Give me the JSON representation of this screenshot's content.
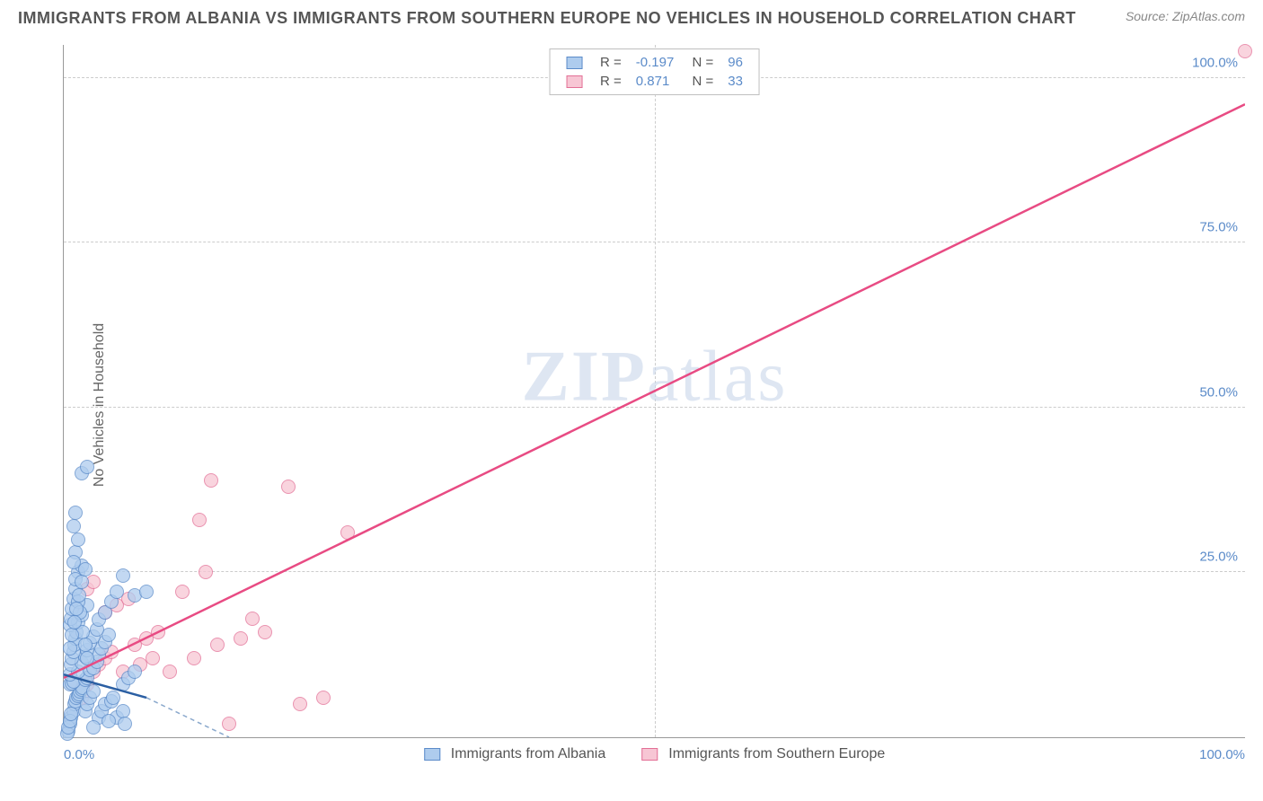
{
  "title": "IMMIGRANTS FROM ALBANIA VS IMMIGRANTS FROM SOUTHERN EUROPE NO VEHICLES IN HOUSEHOLD CORRELATION CHART",
  "source_label": "Source: ZipAtlas.com",
  "watermark": "ZIPatlas",
  "ylabel": "No Vehicles in Household",
  "chart": {
    "type": "scatter",
    "xlim": [
      0,
      100
    ],
    "ylim": [
      0,
      105
    ],
    "x_ticks": [
      0,
      50,
      100
    ],
    "x_tick_labels": [
      "0.0%",
      "",
      "100.0%"
    ],
    "y_ticks": [
      25,
      50,
      75,
      100
    ],
    "y_tick_labels": [
      "25.0%",
      "50.0%",
      "75.0%",
      "100.0%"
    ],
    "grid_color": "#cccccc",
    "background_color": "#ffffff",
    "axis_color": "#999999",
    "tick_label_color": "#5b8bc9",
    "marker_radius": 8,
    "series": [
      {
        "name": "Immigrants from Albania",
        "fill_color": "#aeccee",
        "border_color": "#5b8bc9",
        "line_color": "#2b5fa3",
        "dash_extension_color": "#8aa8cc",
        "R": "-0.197",
        "N": "96",
        "trend": {
          "x1": 0,
          "y1": 9.5,
          "x2": 7,
          "y2": 6,
          "ext_x": 14,
          "ext_y": 0
        },
        "points": [
          [
            0.4,
            1
          ],
          [
            0.5,
            2
          ],
          [
            0.6,
            3
          ],
          [
            0.8,
            4
          ],
          [
            0.9,
            5
          ],
          [
            1.0,
            5.5
          ],
          [
            1.1,
            6
          ],
          [
            1.2,
            6.2
          ],
          [
            1.3,
            6.5
          ],
          [
            1.4,
            7
          ],
          [
            1.5,
            7.2
          ],
          [
            1.6,
            7.5
          ],
          [
            0.5,
            8
          ],
          [
            0.7,
            8.2
          ],
          [
            0.8,
            8.5
          ],
          [
            1.8,
            8.7
          ],
          [
            2.0,
            9
          ],
          [
            0.5,
            9.5
          ],
          [
            1.2,
            10
          ],
          [
            2.2,
            10.2
          ],
          [
            2.5,
            10.5
          ],
          [
            0.6,
            11
          ],
          [
            1.5,
            11.3
          ],
          [
            2.8,
            11.5
          ],
          [
            0.7,
            12
          ],
          [
            1.8,
            12.2
          ],
          [
            3.0,
            12.5
          ],
          [
            0.8,
            13
          ],
          [
            2.0,
            13.2
          ],
          [
            3.2,
            13.5
          ],
          [
            0.9,
            14
          ],
          [
            2.2,
            14.3
          ],
          [
            3.5,
            14.5
          ],
          [
            1.0,
            15
          ],
          [
            2.5,
            15.2
          ],
          [
            3.8,
            15.5
          ],
          [
            1.1,
            16
          ],
          [
            2.8,
            16.3
          ],
          [
            0.5,
            17
          ],
          [
            1.2,
            17.5
          ],
          [
            3.0,
            17.8
          ],
          [
            0.6,
            18
          ],
          [
            1.5,
            18.5
          ],
          [
            3.5,
            19
          ],
          [
            0.7,
            19.5
          ],
          [
            2.0,
            20
          ],
          [
            4.0,
            20.5
          ],
          [
            0.8,
            21
          ],
          [
            6.0,
            21.5
          ],
          [
            4.5,
            22
          ],
          [
            1.0,
            22.5
          ],
          [
            5.0,
            24.5
          ],
          [
            1.2,
            25
          ],
          [
            7.0,
            22
          ],
          [
            1.5,
            26
          ],
          [
            1.0,
            28
          ],
          [
            1.2,
            30
          ],
          [
            0.8,
            32
          ],
          [
            1.0,
            34
          ],
          [
            1.5,
            40
          ],
          [
            2.0,
            41
          ],
          [
            3.0,
            3
          ],
          [
            3.2,
            4
          ],
          [
            3.5,
            5
          ],
          [
            4.0,
            5.5
          ],
          [
            4.2,
            6
          ],
          [
            4.5,
            3
          ],
          [
            5.0,
            4
          ],
          [
            5.2,
            2
          ],
          [
            2.5,
            1.5
          ],
          [
            3.8,
            2.5
          ],
          [
            5.0,
            8
          ],
          [
            5.5,
            9
          ],
          [
            6.0,
            10
          ],
          [
            1.8,
            4
          ],
          [
            2.0,
            5
          ],
          [
            2.2,
            6
          ],
          [
            2.5,
            7
          ],
          [
            0.3,
            0.5
          ],
          [
            0.4,
            1.5
          ],
          [
            0.5,
            2.5
          ],
          [
            0.6,
            3.5
          ],
          [
            0.8,
            26.5
          ],
          [
            1.0,
            24
          ],
          [
            1.2,
            20.5
          ],
          [
            1.4,
            19
          ],
          [
            1.6,
            16
          ],
          [
            1.8,
            14
          ],
          [
            2.0,
            12
          ],
          [
            0.5,
            13.5
          ],
          [
            0.7,
            15.5
          ],
          [
            0.9,
            17.5
          ],
          [
            1.1,
            19.5
          ],
          [
            1.3,
            21.5
          ],
          [
            1.5,
            23.5
          ],
          [
            1.8,
            25.5
          ]
        ]
      },
      {
        "name": "Immigrants from Southern Europe",
        "fill_color": "#f7c6d4",
        "border_color": "#e36f96",
        "line_color": "#e84b83",
        "R": "0.871",
        "N": "33",
        "trend": {
          "x1": 0,
          "y1": 9,
          "x2": 100,
          "y2": 96
        },
        "points": [
          [
            1.5,
            6
          ],
          [
            2.0,
            8
          ],
          [
            2.5,
            10
          ],
          [
            3.0,
            11
          ],
          [
            3.5,
            12
          ],
          [
            4.0,
            13
          ],
          [
            5.0,
            10
          ],
          [
            6.0,
            14
          ],
          [
            7.0,
            15
          ],
          [
            8.0,
            16
          ],
          [
            9.0,
            10
          ],
          [
            10.0,
            22
          ],
          [
            11.0,
            12
          ],
          [
            12.0,
            25
          ],
          [
            13.0,
            14
          ],
          [
            14.0,
            2
          ],
          [
            15.0,
            15
          ],
          [
            16.0,
            18
          ],
          [
            17.0,
            16
          ],
          [
            11.5,
            33
          ],
          [
            20.0,
            5
          ],
          [
            22.0,
            6
          ],
          [
            24.0,
            31
          ],
          [
            19.0,
            38
          ],
          [
            12.5,
            39
          ],
          [
            3.5,
            19
          ],
          [
            4.5,
            20
          ],
          [
            5.5,
            21
          ],
          [
            2.0,
            22.5
          ],
          [
            2.5,
            23.5
          ],
          [
            6.5,
            11
          ],
          [
            7.5,
            12
          ],
          [
            100,
            104
          ]
        ]
      }
    ]
  }
}
